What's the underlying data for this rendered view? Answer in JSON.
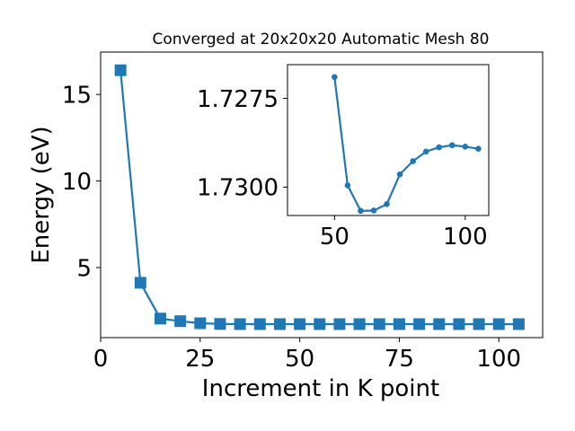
{
  "chart_data": [
    {
      "type": "line",
      "title": "Converged at 20x20x20 Automatic Mesh 80",
      "xlabel": "Increment in K point",
      "ylabel": "Energy (eV)",
      "xlim": [
        0,
        111
      ],
      "ylim": [
        0.95,
        17.45
      ],
      "xticks": [
        0,
        25,
        50,
        75,
        100
      ],
      "yticks": [
        5,
        10,
        15
      ],
      "grid": false,
      "marker": "square",
      "color": "#1f77b4",
      "series": [
        {
          "x": [
            5,
            10,
            15,
            20,
            25,
            30,
            35,
            40,
            45,
            50,
            55,
            60,
            65,
            70,
            75,
            80,
            85,
            90,
            95,
            100,
            105
          ],
          "values": [
            16.4,
            4.12,
            2.05,
            1.9,
            1.78,
            1.74,
            1.73,
            1.73,
            1.73,
            1.73,
            1.73,
            1.73,
            1.73,
            1.73,
            1.73,
            1.73,
            1.73,
            1.73,
            1.73,
            1.73,
            1.73
          ]
        }
      ]
    },
    {
      "type": "line",
      "title": "",
      "xlabel": "",
      "ylabel": "",
      "xlim": [
        32,
        109
      ],
      "ylim": [
        1.7308,
        1.72655
      ],
      "y_inverted": true,
      "xticks": [
        50,
        100
      ],
      "yticks": [
        1.7275,
        1.73
      ],
      "ytick_labels": [
        "1.7275",
        "1.7300"
      ],
      "grid": false,
      "marker": "circle",
      "color": "#1f77b4",
      "series": [
        {
          "x": [
            50,
            55,
            60,
            65,
            70,
            75,
            80,
            85,
            90,
            95,
            100,
            105
          ],
          "values": [
            1.7269,
            1.72995,
            1.73067,
            1.73066,
            1.73048,
            1.72964,
            1.72927,
            1.729,
            1.72888,
            1.72882,
            1.72886,
            1.72892
          ]
        }
      ]
    }
  ]
}
